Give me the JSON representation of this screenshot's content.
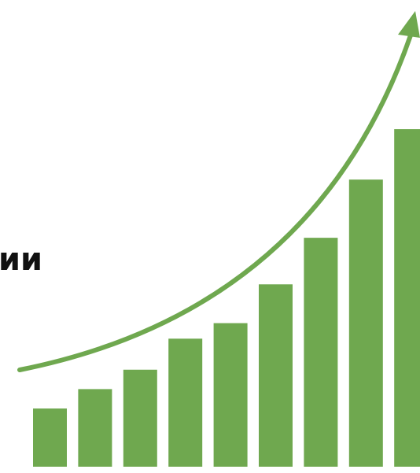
{
  "chart_data": {
    "type": "bar",
    "annotation": "ии",
    "categories": [
      null,
      null,
      null,
      null,
      null,
      null,
      null,
      null,
      null
    ],
    "values": [
      15,
      20,
      25,
      33,
      37,
      47,
      59,
      74,
      87
    ],
    "color": "#6fa84f",
    "ylim": [
      0,
      100
    ]
  }
}
